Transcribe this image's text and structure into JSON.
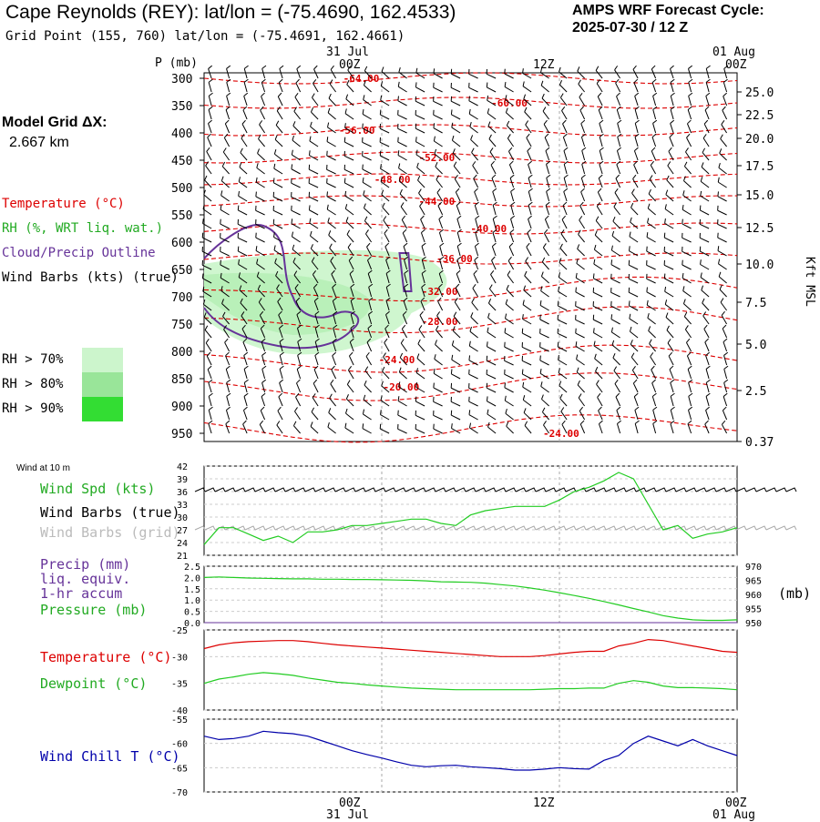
{
  "header": {
    "title": "Cape Reynolds (REY):  lat/lon = (-75.4690, 162.4533)",
    "grid_point": "Grid Point (155, 760) lat/lon = (-75.4691, 162.4661)",
    "cycle_line1": "AMPS WRF Forecast Cycle:",
    "cycle_line2": "2025-07-30 / 12  Z"
  },
  "sidebar": {
    "model_grid_label": "Model Grid ΔX:",
    "model_grid_value": "2.667 km",
    "legend_temperature": "Temperature (°C)",
    "legend_rh": "RH (%, WRT liq. wat.)",
    "legend_cloud": "Cloud/Precip Outline",
    "legend_wind": "Wind Barbs (kts) (true)",
    "rh_levels": [
      {
        "label": "RH > 70%",
        "color": "#ccf5cc"
      },
      {
        "label": "RH > 80%",
        "color": "#99e599"
      },
      {
        "label": "RH > 90%",
        "color": "#33dd33"
      }
    ]
  },
  "colors": {
    "temperature": "#dd0000",
    "rh_line": "#22cc22",
    "cloud": "#663399",
    "dewpoint": "#22cc22",
    "wind_chill": "#0000aa",
    "grid_barbs": "#aaaaaa"
  },
  "time_axis": {
    "top_date_labels": [
      "31 Jul",
      "01 Aug"
    ],
    "top_time_labels": [
      "00Z",
      "12Z",
      "00Z"
    ],
    "bottom_time_labels": [
      "00Z",
      "12Z",
      "00Z"
    ],
    "bottom_date_labels": [
      "31 Jul",
      "01 Aug"
    ]
  },
  "panel_labels": {
    "pressure_axis": "P (mb)",
    "height_axis": "Kft MSL",
    "wind10m": "Wind at 10 m",
    "wind_spd": "Wind Spd (kts)",
    "wind_barbs_true": "Wind Barbs (true)",
    "wind_barbs_grid": "Wind Barbs (grid)",
    "precip1": "Precip (mm)",
    "precip2": "liq. equiv.",
    "precip3": "1-hr accum",
    "pressure": "Pressure (mb)",
    "pressure_unit": "(mb)",
    "temperature": "Temperature (°C)",
    "dewpoint": "Dewpoint (°C)",
    "windchill": "Wind Chill T (°C)"
  },
  "chart_data": [
    {
      "type": "line",
      "panel": "cross-section",
      "x_range": [
        -12,
        24
      ],
      "pressure_levels": [
        300,
        350,
        400,
        450,
        500,
        550,
        600,
        650,
        700,
        750,
        800,
        850,
        900,
        950
      ],
      "height_ticks": [
        "25.0",
        "22.5",
        "20.0",
        "17.5",
        "15.0",
        "12.5",
        "10.0",
        "7.5",
        "5.0",
        "2.5",
        "0.37"
      ],
      "temperature_contours": [
        {
          "label": "-64.00",
          "p": 300,
          "x": -1.5
        },
        {
          "label": "-60.00",
          "p": 345,
          "x": 8.5
        },
        {
          "label": "-56.00",
          "p": 395,
          "x": -1.8
        },
        {
          "label": "-52.00",
          "p": 445,
          "x": 3.6
        },
        {
          "label": "-48.00",
          "p": 485,
          "x": 0.6
        },
        {
          "label": "-44.00",
          "p": 525,
          "x": 3.6
        },
        {
          "label": "-40.00",
          "p": 575,
          "x": 7.1
        },
        {
          "label": "-36.00",
          "p": 630,
          "x": 4.8
        },
        {
          "label": "-32.00",
          "p": 690,
          "x": 3.8
        },
        {
          "label": "-28.00",
          "p": 745,
          "x": 3.8
        },
        {
          "label": "-24.00",
          "p": 815,
          "x": 0.9
        },
        {
          "label": "-20.00",
          "p": 865,
          "x": 1.2
        },
        {
          "label": "-24.00",
          "p": 950,
          "x": 12.0
        }
      ]
    },
    {
      "type": "line",
      "panel": "wind10m",
      "ylabel": "",
      "ylim": [
        21,
        42
      ],
      "y_ticks": [
        21,
        24,
        27,
        30,
        33,
        36,
        39,
        42
      ],
      "x": [
        -12,
        -11,
        -10,
        -9,
        -8,
        -7,
        -6,
        -5,
        -4,
        -3,
        -2,
        -1,
        0,
        1,
        2,
        3,
        4,
        5,
        6,
        7,
        8,
        9,
        10,
        11,
        12,
        13,
        14,
        15,
        16,
        17,
        18,
        19,
        20,
        21,
        22,
        23,
        24
      ],
      "series": [
        {
          "values": [
            23.5,
            27.5,
            27.5,
            26.0,
            24.5,
            25.5,
            24.0,
            26.5,
            26.5,
            27.0,
            28.0,
            28.0,
            28.5,
            29.0,
            29.5,
            29.5,
            28.5,
            28.0,
            30.5,
            31.5,
            32.0,
            32.5,
            32.5,
            32.5,
            34.0,
            36.0,
            37.0,
            38.5,
            40.5,
            39.0,
            33.0,
            27.0,
            28.0,
            25.0,
            26.0,
            26.5,
            27.5
          ]
        }
      ]
    },
    {
      "type": "line",
      "panel": "precip-pressure",
      "y_left_ticks": [
        "2.5",
        "2.0",
        "1.5",
        "1.0",
        "0.5",
        "0.0"
      ],
      "y_right_ticks": [
        "970",
        "965",
        "960",
        "955",
        "950"
      ],
      "series": [
        {
          "y_axis": "right",
          "values": [
            966.0,
            966.2,
            966.0,
            965.8,
            965.7,
            965.6,
            965.5,
            965.5,
            965.4,
            965.4,
            965.3,
            965.3,
            965.2,
            965.1,
            965.0,
            964.8,
            964.5,
            964.4,
            964.3,
            964.0,
            963.5,
            963.0,
            962.3,
            961.5,
            960.6,
            959.6,
            958.6,
            957.5,
            956.3,
            955.0,
            953.8,
            952.5,
            951.6,
            951.0,
            950.8,
            950.8,
            951.0
          ]
        },
        {
          "y_axis": "left",
          "values": [
            0,
            0,
            0,
            0,
            0,
            0,
            0,
            0,
            0,
            0,
            0,
            0,
            0,
            0,
            0,
            0,
            0,
            0,
            0,
            0,
            0,
            0,
            0,
            0,
            0,
            0,
            0,
            0,
            0,
            0,
            0,
            0,
            0,
            0,
            0,
            0,
            0
          ]
        }
      ]
    },
    {
      "type": "line",
      "panel": "temperature-dewpoint",
      "ylim": [
        -40,
        -25
      ],
      "y_ticks": [
        -25,
        -30,
        -35,
        -40
      ],
      "series": [
        {
          "values": [
            -28.5,
            -27.8,
            -27.4,
            -27.2,
            -27.1,
            -27.0,
            -27.0,
            -27.2,
            -27.5,
            -27.8,
            -28.0,
            -28.2,
            -28.4,
            -28.6,
            -28.8,
            -29.0,
            -29.2,
            -29.4,
            -29.6,
            -29.8,
            -30.0,
            -30.0,
            -30.0,
            -29.8,
            -29.5,
            -29.2,
            -29.0,
            -29.0,
            -28.0,
            -27.5,
            -26.8,
            -27.0,
            -27.5,
            -28.0,
            -28.5,
            -29.0,
            -29.2
          ]
        },
        {
          "values": [
            -35.0,
            -34.2,
            -33.8,
            -33.3,
            -33.0,
            -33.2,
            -33.5,
            -34.0,
            -34.4,
            -34.8,
            -35.0,
            -35.3,
            -35.5,
            -35.7,
            -35.9,
            -36.0,
            -36.1,
            -36.2,
            -36.2,
            -36.2,
            -36.2,
            -36.2,
            -36.2,
            -36.1,
            -36.0,
            -36.0,
            -35.9,
            -35.9,
            -35.0,
            -34.5,
            -34.8,
            -35.5,
            -35.8,
            -35.8,
            -35.9,
            -36.0,
            -36.2
          ]
        }
      ]
    },
    {
      "type": "line",
      "panel": "wind-chill",
      "ylim": [
        -70,
        -55
      ],
      "y_ticks": [
        -55,
        -60,
        -65,
        -70
      ],
      "series": [
        {
          "values": [
            -58.5,
            -59.2,
            -59.0,
            -58.5,
            -57.5,
            -57.8,
            -58.0,
            -58.5,
            -59.5,
            -60.5,
            -61.5,
            -62.3,
            -63.0,
            -63.8,
            -64.5,
            -64.8,
            -64.6,
            -64.5,
            -64.8,
            -65.0,
            -65.2,
            -65.5,
            -65.5,
            -65.3,
            -65.0,
            -65.2,
            -65.3,
            -63.5,
            -62.5,
            -60.0,
            -58.5,
            -59.5,
            -60.5,
            -59.2,
            -60.5,
            -61.5,
            -62.5
          ]
        }
      ]
    }
  ]
}
